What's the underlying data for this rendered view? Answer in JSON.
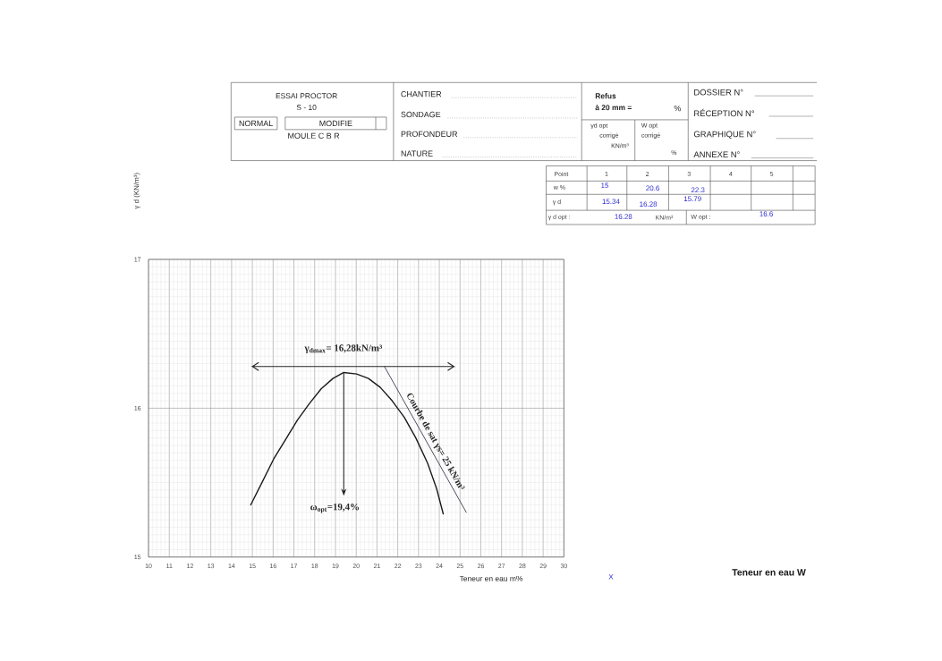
{
  "chart_data": {
    "type": "line",
    "title": "ESSAI PROCTOR",
    "subtitle": "S - 10",
    "xlabel": "Teneur en eau m%",
    "xlim": [
      10,
      30
    ],
    "ylim": [
      15,
      17
    ],
    "xticks": [
      10,
      11,
      12,
      13,
      14,
      15,
      16,
      17,
      18,
      19,
      20,
      21,
      22,
      23,
      24,
      25,
      26,
      27,
      28,
      29,
      30
    ],
    "yticks": [
      15,
      16,
      17
    ],
    "grid": true,
    "series": [
      {
        "color": "#1a1a1a",
        "x": [
          14.92,
          15.46,
          16.03,
          16.6,
          17.17,
          17.74,
          18.31,
          18.88,
          19.4,
          20.02,
          20.59,
          21.16,
          21.73,
          22.31,
          22.87,
          23.44,
          23.87,
          24.19
        ],
        "values": [
          15.35,
          15.5,
          15.66,
          15.79,
          15.92,
          16.03,
          16.13,
          16.2,
          16.24,
          16.23,
          16.2,
          16.14,
          16.05,
          15.94,
          15.8,
          15.63,
          15.46,
          15.29
        ]
      },
      {
        "name": "Courbe de sat γs= 25 kN/m³",
        "color": "#3a3a4e",
        "x": [
          21.36,
          25.3
        ],
        "values": [
          16.28,
          15.3
        ]
      }
    ],
    "ref_lines": [
      {
        "axis": "y",
        "value": 16.28,
        "label": "γ$_{dmax}$= 16,28kN/m³"
      }
    ],
    "annotations": [
      {
        "text": "ω$_{opt}$=19,4%",
        "x": 19.4,
        "y": 16.24
      },
      "NORMAL",
      "MODIFIE",
      "MOULE C B R",
      "CHANTIER",
      "SONDAGE",
      "PROFONDEUR",
      "NATURE",
      "Refus",
      "à 20 mm =",
      "%",
      "γd opt",
      "corrigé",
      "KN/m³",
      "W opt",
      "corrigé",
      "%",
      "DOSSIER N°",
      "RÉCEPTION N°",
      "GRAPHIQUE N°",
      "ANNEXE N°",
      "Point",
      "1",
      "2",
      "3",
      "4",
      "5",
      "w %",
      "15",
      "20.6",
      "22.3",
      "γ d",
      "15.34",
      "16.28",
      "15.79",
      "γ d opt :",
      "16.28",
      "KN/m³",
      "W opt :",
      "16.6",
      "X",
      "Teneur en eau W",
      "γ d (KN/m³)"
    ]
  }
}
